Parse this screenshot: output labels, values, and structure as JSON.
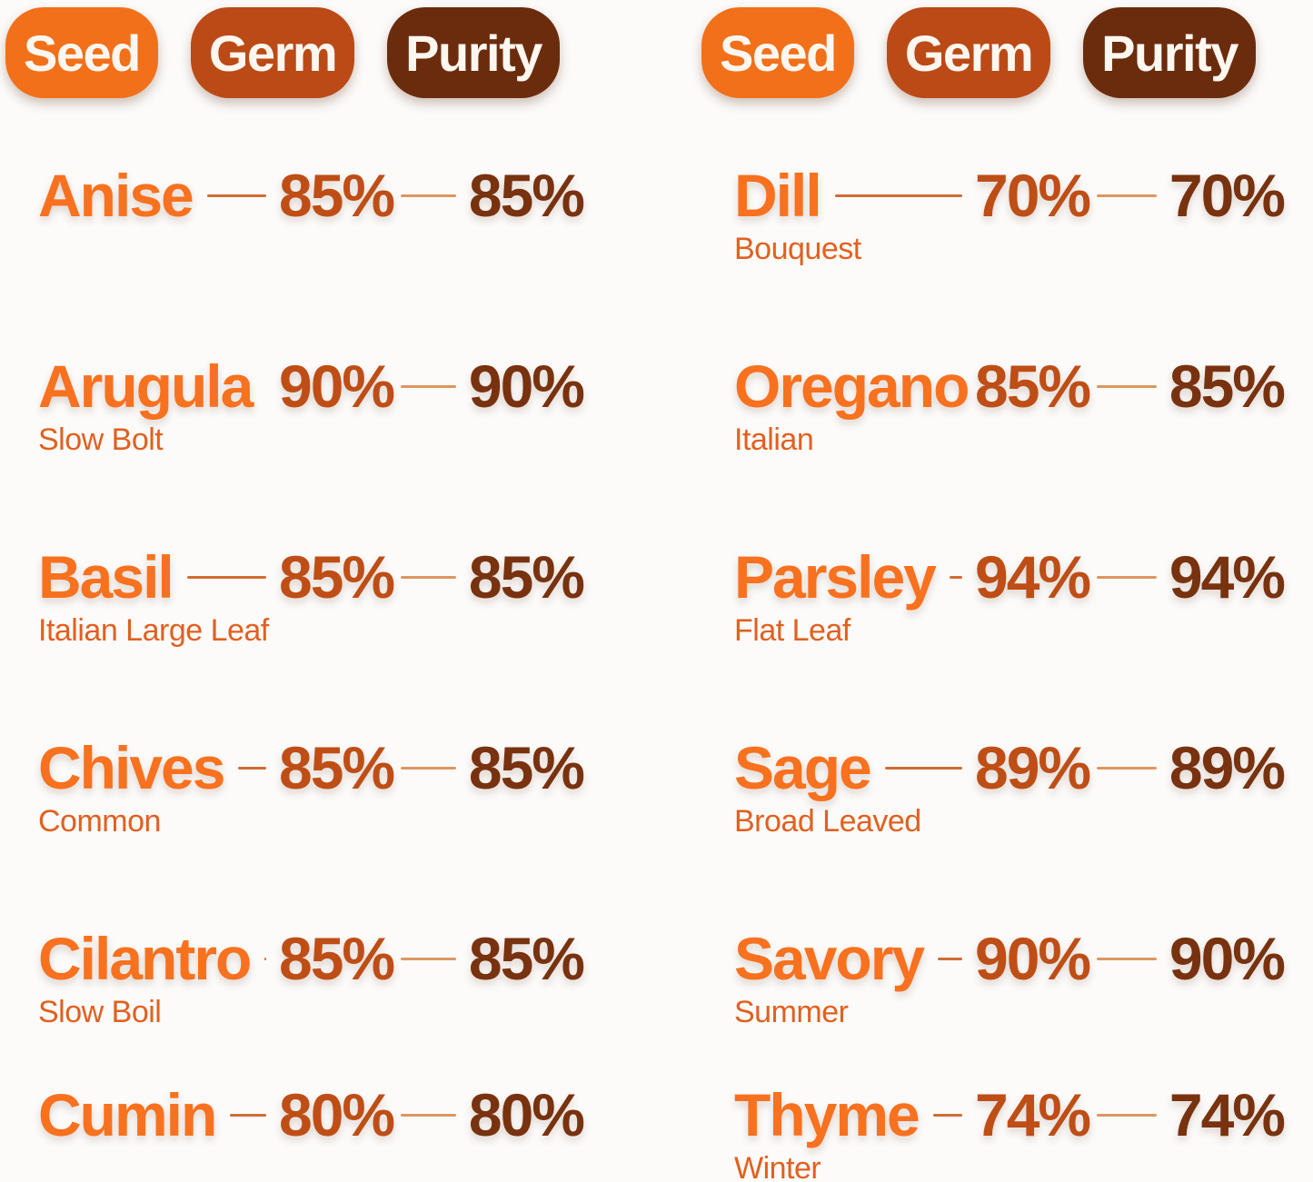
{
  "colors": {
    "background": "#FCFBFA",
    "seed_badge": "#F2701A",
    "germ_badge": "#BB4A17",
    "purity_badge": "#6B2C0E",
    "seed_name_text": "#F8711F",
    "variety_text": "#E2601F",
    "germ_value_text": "#BE4E16",
    "purity_value_text": "#78320F",
    "germ_connector": "#D06C32",
    "purity_connector": "#DD9660"
  },
  "chart_data": {
    "type": "table",
    "column_headers": [
      "Seed",
      "Germ",
      "Purity"
    ],
    "tables": [
      {
        "rows": [
          {
            "seed": "Anise",
            "variety": "",
            "germ": "85%",
            "purity": "85%"
          },
          {
            "seed": "Arugula",
            "variety": "Slow Bolt",
            "germ": "90%",
            "purity": "90%"
          },
          {
            "seed": "Basil",
            "variety": "Italian Large Leaf",
            "germ": "85%",
            "purity": "85%"
          },
          {
            "seed": "Chives",
            "variety": "Common",
            "germ": "85%",
            "purity": "85%"
          },
          {
            "seed": "Cilantro",
            "variety": "Slow Boil",
            "germ": "85%",
            "purity": "85%"
          },
          {
            "seed": "Cumin",
            "variety": "",
            "germ": "80%",
            "purity": "80%"
          }
        ]
      },
      {
        "rows": [
          {
            "seed": "Dill",
            "variety": "Bouquest",
            "germ": "70%",
            "purity": "70%"
          },
          {
            "seed": "Oregano",
            "variety": "Italian",
            "germ": "85%",
            "purity": "85%"
          },
          {
            "seed": "Parsley",
            "variety": "Flat Leaf",
            "germ": "94%",
            "purity": "94%"
          },
          {
            "seed": "Sage",
            "variety": "Broad Leaved",
            "germ": "89%",
            "purity": "89%"
          },
          {
            "seed": "Savory",
            "variety": "Summer",
            "germ": "90%",
            "purity": "90%"
          },
          {
            "seed": "Thyme",
            "variety": "Winter",
            "germ": "74%",
            "purity": "74%"
          }
        ]
      }
    ]
  }
}
